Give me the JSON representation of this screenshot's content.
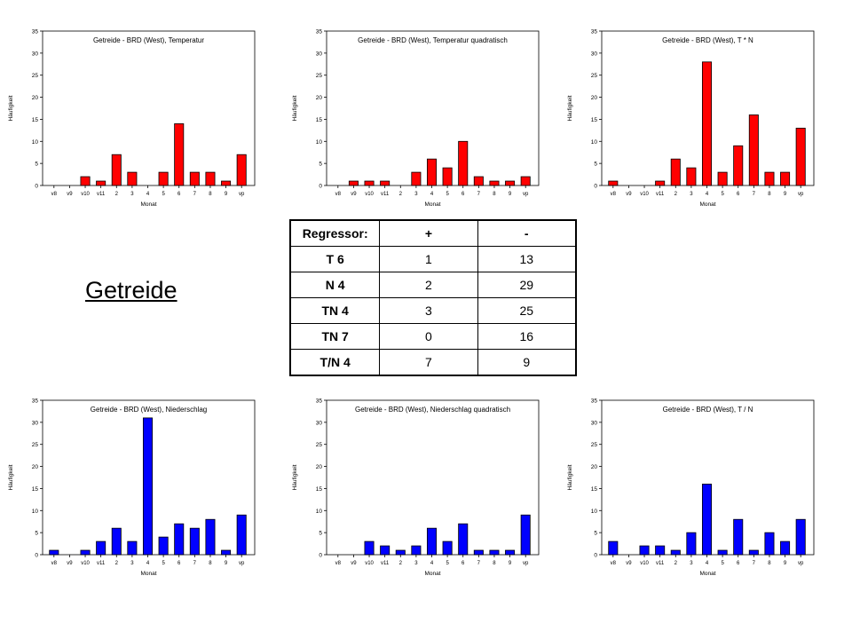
{
  "page": {
    "title": "Getreide"
  },
  "table": {
    "headers": [
      "Regressor:",
      "+",
      "-"
    ],
    "rows": [
      {
        "label": "T 6",
        "plus": "1",
        "minus": "13"
      },
      {
        "label": "N 4",
        "plus": "2",
        "minus": "29"
      },
      {
        "label": "TN 4",
        "plus": "3",
        "minus": "25"
      },
      {
        "label": "TN 7",
        "plus": "0",
        "minus": "16"
      },
      {
        "label": "T/N 4",
        "plus": "7",
        "minus": "9"
      }
    ]
  },
  "chart_data": [
    {
      "type": "bar",
      "title": "Getreide - BRD (West), Temperatur",
      "xlabel": "Monat",
      "ylabel": "Häufigkeit",
      "ylim": [
        0,
        35
      ],
      "yticks": [
        0,
        5,
        10,
        15,
        20,
        25,
        30,
        35
      ],
      "categories": [
        "v8",
        "v9",
        "v10",
        "v11",
        "2",
        "3",
        "4",
        "5",
        "6",
        "7",
        "8",
        "9",
        "vp"
      ],
      "values": [
        0,
        0,
        2,
        1,
        7,
        3,
        0,
        3,
        14,
        3,
        3,
        1,
        7
      ],
      "color": "#ff0000"
    },
    {
      "type": "bar",
      "title": "Getreide - BRD (West), Temperatur quadratisch",
      "xlabel": "Monat",
      "ylabel": "Häufigkeit",
      "ylim": [
        0,
        35
      ],
      "yticks": [
        0,
        5,
        10,
        15,
        20,
        25,
        30,
        35
      ],
      "categories": [
        "v8",
        "v9",
        "v10",
        "v11",
        "2",
        "3",
        "4",
        "5",
        "6",
        "7",
        "8",
        "9",
        "vp"
      ],
      "values": [
        0,
        1,
        1,
        1,
        0,
        3,
        6,
        4,
        10,
        2,
        1,
        1,
        2
      ],
      "color": "#ff0000"
    },
    {
      "type": "bar",
      "title": "Getreide - BRD (West), T * N",
      "xlabel": "Monat",
      "ylabel": "Häufigkeit",
      "ylim": [
        0,
        35
      ],
      "yticks": [
        0,
        5,
        10,
        15,
        20,
        25,
        30,
        35
      ],
      "categories": [
        "v8",
        "v9",
        "v10",
        "v11",
        "2",
        "3",
        "4",
        "5",
        "6",
        "7",
        "8",
        "9",
        "vp"
      ],
      "values": [
        1,
        0,
        0,
        1,
        6,
        4,
        28,
        3,
        9,
        16,
        3,
        3,
        13
      ],
      "color": "#ff0000"
    },
    {
      "type": "bar",
      "title": "Getreide - BRD (West), Niederschlag",
      "xlabel": "Monat",
      "ylabel": "Häufigkeit",
      "ylim": [
        0,
        35
      ],
      "yticks": [
        0,
        5,
        10,
        15,
        20,
        25,
        30,
        35
      ],
      "categories": [
        "v8",
        "v9",
        "v10",
        "v11",
        "2",
        "3",
        "4",
        "5",
        "6",
        "7",
        "8",
        "9",
        "vp"
      ],
      "values": [
        1,
        0,
        1,
        3,
        6,
        3,
        31,
        4,
        7,
        6,
        8,
        1,
        9
      ],
      "color": "#0000ff"
    },
    {
      "type": "bar",
      "title": "Getreide - BRD (West), Niederschlag quadratisch",
      "xlabel": "Monat",
      "ylabel": "Häufigkeit",
      "ylim": [
        0,
        35
      ],
      "yticks": [
        0,
        5,
        10,
        15,
        20,
        25,
        30,
        35
      ],
      "categories": [
        "v8",
        "v9",
        "v10",
        "v11",
        "2",
        "3",
        "4",
        "5",
        "6",
        "7",
        "8",
        "9",
        "vp"
      ],
      "values": [
        0,
        0,
        3,
        2,
        1,
        2,
        6,
        3,
        7,
        1,
        1,
        1,
        9
      ],
      "color": "#0000ff"
    },
    {
      "type": "bar",
      "title": "Getreide - BRD (West), T / N",
      "xlabel": "Monat",
      "ylabel": "Häufigkeit",
      "ylim": [
        0,
        35
      ],
      "yticks": [
        0,
        5,
        10,
        15,
        20,
        25,
        30,
        35
      ],
      "categories": [
        "v8",
        "v9",
        "v10",
        "v11",
        "2",
        "3",
        "4",
        "5",
        "6",
        "7",
        "8",
        "9",
        "vp"
      ],
      "values": [
        3,
        0,
        2,
        2,
        1,
        5,
        16,
        1,
        8,
        1,
        5,
        3,
        8
      ],
      "color": "#0000ff"
    }
  ]
}
